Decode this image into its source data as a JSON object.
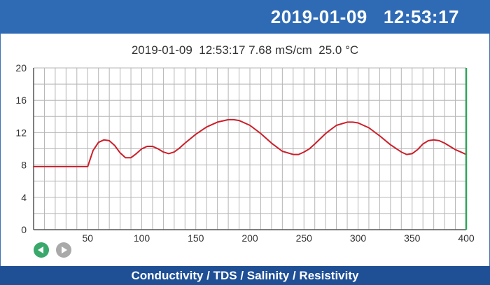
{
  "header": {
    "datetime": "2019-01-09   12:53:17"
  },
  "readout": {
    "text": "2019-01-09  12:53:17 7.68 mS/cm  25.0 °C"
  },
  "footer": {
    "title": "Conductivity / TDS / Salinity / Resistivity"
  },
  "controls": {
    "prev_icon": "chevron-left-icon",
    "next_icon": "chevron-right-icon"
  },
  "colors": {
    "header_bg": "#2f6bb5",
    "footer_bg": "#1f4f95",
    "trace": "#cc1f2a",
    "cursor": "#2fa35a",
    "grid": "#b5b5b5"
  },
  "chart_data": {
    "type": "line",
    "title": "",
    "xlabel": "",
    "ylabel": "",
    "xlim": [
      0,
      400
    ],
    "ylim": [
      0,
      20
    ],
    "x_ticks": [
      50,
      100,
      150,
      200,
      250,
      300,
      350,
      400
    ],
    "y_ticks": [
      0,
      4,
      8,
      12,
      16,
      20
    ],
    "grid": true,
    "cursor_x": 400,
    "series": [
      {
        "name": "",
        "x": [
          0,
          10,
          20,
          30,
          40,
          50,
          55,
          60,
          65,
          70,
          75,
          80,
          85,
          90,
          95,
          100,
          105,
          110,
          115,
          120,
          125,
          130,
          135,
          140,
          150,
          160,
          170,
          180,
          185,
          190,
          200,
          210,
          220,
          230,
          240,
          245,
          250,
          255,
          260,
          270,
          280,
          290,
          295,
          300,
          310,
          320,
          330,
          340,
          345,
          350,
          355,
          360,
          365,
          370,
          375,
          380,
          385,
          390,
          395,
          400
        ],
        "y": [
          7.8,
          7.8,
          7.8,
          7.8,
          7.8,
          7.8,
          9.8,
          10.8,
          11.1,
          11.0,
          10.4,
          9.5,
          8.9,
          8.9,
          9.4,
          10.0,
          10.3,
          10.3,
          10.0,
          9.6,
          9.4,
          9.6,
          10.1,
          10.7,
          11.8,
          12.7,
          13.3,
          13.6,
          13.6,
          13.5,
          12.9,
          11.9,
          10.7,
          9.7,
          9.3,
          9.3,
          9.6,
          10.0,
          10.6,
          11.9,
          12.9,
          13.3,
          13.3,
          13.2,
          12.6,
          11.6,
          10.5,
          9.6,
          9.3,
          9.4,
          9.9,
          10.6,
          11.0,
          11.1,
          11.0,
          10.7,
          10.3,
          9.9,
          9.6,
          9.3
        ]
      }
    ]
  }
}
